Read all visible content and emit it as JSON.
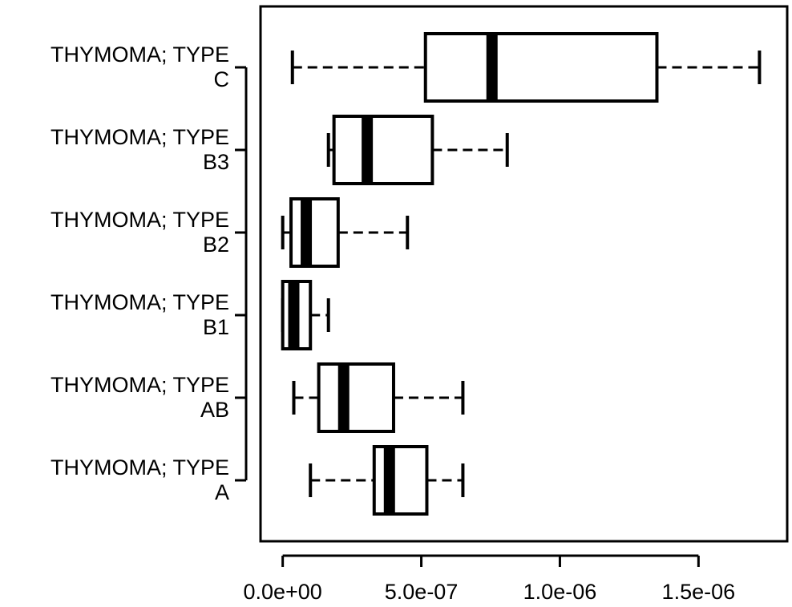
{
  "chart_data": {
    "type": "boxplot",
    "orientation": "horizontal",
    "title": "",
    "xlabel": "",
    "ylabel": "",
    "xlim": [
      -8e-08,
      1.82e-06
    ],
    "x_ticks": [
      {
        "value": 0,
        "label": "0.0e+00"
      },
      {
        "value": 5e-07,
        "label": "5.0e-07"
      },
      {
        "value": 1e-06,
        "label": "1.0e-06"
      },
      {
        "value": 1.5e-06,
        "label": "1.5e-06"
      }
    ],
    "series": [
      {
        "category_lines": [
          "THYMOMA; TYPE",
          "A"
        ],
        "whisker_low": 1e-07,
        "q1": 3.3e-07,
        "median": 3.85e-07,
        "q3": 5.2e-07,
        "whisker_high": 6.5e-07
      },
      {
        "category_lines": [
          "THYMOMA; TYPE",
          "AB"
        ],
        "whisker_low": 4e-08,
        "q1": 1.3e-07,
        "median": 2.2e-07,
        "q3": 4e-07,
        "whisker_high": 6.5e-07
      },
      {
        "category_lines": [
          "THYMOMA; TYPE",
          "B1"
        ],
        "whisker_low": 0.0,
        "q1": 0.0,
        "median": 4e-08,
        "q3": 1e-07,
        "whisker_high": 1.65e-07
      },
      {
        "category_lines": [
          "THYMOMA; TYPE",
          "B2"
        ],
        "whisker_low": 0.0,
        "q1": 3e-08,
        "median": 8.5e-08,
        "q3": 2e-07,
        "whisker_high": 4.5e-07
      },
      {
        "category_lines": [
          "THYMOMA; TYPE",
          "B3"
        ],
        "whisker_low": 1.65e-07,
        "q1": 1.85e-07,
        "median": 3.05e-07,
        "q3": 5.4e-07,
        "whisker_high": 8.1e-07
      },
      {
        "category_lines": [
          "THYMOMA; TYPE",
          "C"
        ],
        "whisker_low": 3.5e-08,
        "q1": 5.15e-07,
        "median": 7.55e-07,
        "q3": 1.35e-06,
        "whisker_high": 1.72e-06
      }
    ],
    "grid": false,
    "legend": "none",
    "colors": {
      "stroke": "#000000",
      "fill": "#ffffff"
    }
  }
}
